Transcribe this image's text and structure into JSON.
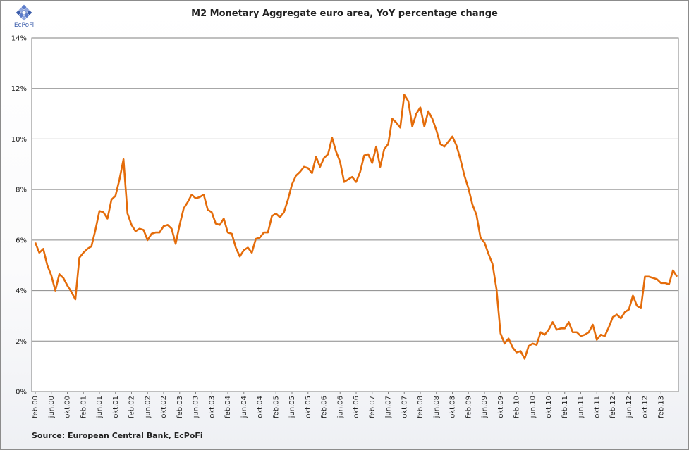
{
  "header": {
    "logo_text": "EcPoFi",
    "logo_icon": "ecpofi-diamond-logo"
  },
  "chart_data": {
    "type": "line",
    "title": "M2 Monetary Aggregate euro area, YoY percentage change",
    "xlabel": "",
    "ylabel": "",
    "ylim": [
      0,
      14
    ],
    "y_ticks": [
      "0%",
      "2%",
      "4%",
      "6%",
      "8%",
      "10%",
      "12%",
      "14%"
    ],
    "grid": "horizontal",
    "legend": "none",
    "x_tick_labels": [
      "feb.00",
      "jun.00",
      "okt.00",
      "feb.01",
      "jun.01",
      "okt.01",
      "feb.02",
      "jun.02",
      "okt.02",
      "feb.03",
      "jun.03",
      "okt.03",
      "feb.04",
      "jun.04",
      "okt.04",
      "feb.05",
      "jun.05",
      "okt.05",
      "feb.06",
      "jun.06",
      "okt.06",
      "feb.07",
      "jun.07",
      "okt.07",
      "feb.08",
      "jun.08",
      "okt.08",
      "feb.09",
      "jun.09",
      "okt.09",
      "feb.10",
      "jun.10",
      "okt.10",
      "feb.11",
      "jun.11",
      "okt.11",
      "feb.12",
      "jun.12",
      "okt.12",
      "feb.13"
    ],
    "x_start": "feb.00",
    "series": [
      {
        "color": "#E46C0A",
        "values": [
          5.9,
          5.5,
          5.65,
          5.0,
          4.6,
          4.0,
          4.65,
          4.5,
          4.2,
          3.95,
          3.65,
          5.3,
          5.5,
          5.65,
          5.75,
          6.4,
          7.15,
          7.1,
          6.85,
          7.6,
          7.75,
          8.4,
          9.2,
          7.05,
          6.6,
          6.35,
          6.45,
          6.4,
          6.0,
          6.25,
          6.3,
          6.3,
          6.55,
          6.6,
          6.45,
          5.85,
          6.6,
          7.25,
          7.5,
          7.8,
          7.65,
          7.7,
          7.8,
          7.2,
          7.1,
          6.65,
          6.6,
          6.85,
          6.3,
          6.25,
          5.7,
          5.35,
          5.6,
          5.7,
          5.5,
          6.05,
          6.1,
          6.3,
          6.3,
          6.95,
          7.05,
          6.9,
          7.1,
          7.6,
          8.2,
          8.55,
          8.7,
          8.9,
          8.85,
          8.65,
          9.3,
          8.9,
          9.25,
          9.4,
          10.05,
          9.5,
          9.1,
          8.3,
          8.4,
          8.5,
          8.3,
          8.7,
          9.35,
          9.4,
          9.05,
          9.7,
          8.9,
          9.6,
          9.8,
          10.8,
          10.65,
          10.45,
          11.75,
          11.5,
          10.5,
          11.0,
          11.25,
          10.5,
          11.1,
          10.8,
          10.35,
          9.8,
          9.7,
          9.9,
          10.1,
          9.75,
          9.2,
          8.55,
          8.05,
          7.4,
          7.0,
          6.1,
          5.9,
          5.45,
          5.05,
          4.05,
          2.3,
          1.9,
          2.1,
          1.75,
          1.55,
          1.6,
          1.3,
          1.8,
          1.9,
          1.85,
          2.35,
          2.25,
          2.45,
          2.75,
          2.45,
          2.5,
          2.5,
          2.75,
          2.35,
          2.35,
          2.2,
          2.25,
          2.35,
          2.65,
          2.05,
          2.25,
          2.2,
          2.55,
          2.95,
          3.05,
          2.9,
          3.15,
          3.25,
          3.8,
          3.4,
          3.3,
          4.55,
          4.55,
          4.5,
          4.45,
          4.3,
          4.3,
          4.25,
          4.8,
          4.55
        ]
      }
    ]
  },
  "footer": {
    "source": "Source: European  Central Bank,  EcPoFi"
  }
}
